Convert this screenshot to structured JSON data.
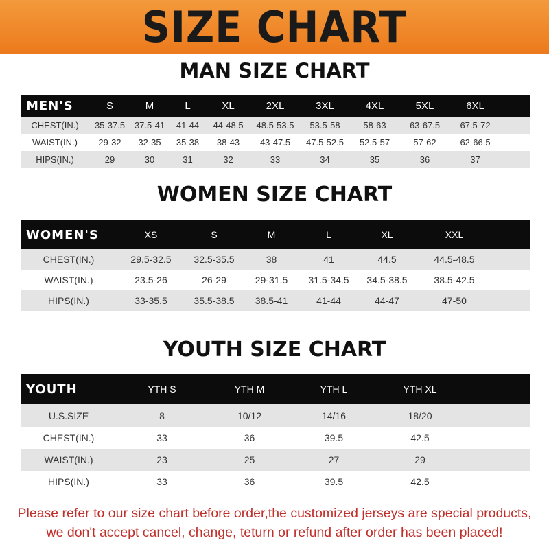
{
  "banner": "SIZE CHART",
  "men": {
    "title": "MAN SIZE CHART",
    "header": [
      "MEN'S",
      "S",
      "M",
      "L",
      "XL",
      "2XL",
      "3XL",
      "4XL",
      "5XL",
      "6XL"
    ],
    "rows": [
      [
        "CHEST(IN.)",
        "35-37.5",
        "37.5-41",
        "41-44",
        "44-48.5",
        "48.5-53.5",
        "53.5-58",
        "58-63",
        "63-67.5",
        "67.5-72"
      ],
      [
        "WAIST(IN.)",
        "29-32",
        "32-35",
        "35-38",
        "38-43",
        "43-47.5",
        "47.5-52.5",
        "52.5-57",
        "57-62",
        "62-66.5"
      ],
      [
        "HIPS(IN.)",
        "29",
        "30",
        "31",
        "32",
        "33",
        "34",
        "35",
        "36",
        "37"
      ]
    ]
  },
  "women": {
    "title": "WOMEN SIZE CHART",
    "header": [
      "WOMEN'S",
      "XS",
      "S",
      "M",
      "L",
      "XL",
      "XXL"
    ],
    "rows": [
      [
        "CHEST(IN.)",
        "29.5-32.5",
        "32.5-35.5",
        "38",
        "41",
        "44.5",
        "44.5-48.5"
      ],
      [
        "WAIST(IN.)",
        "23.5-26",
        "26-29",
        "29-31.5",
        "31.5-34.5",
        "34.5-38.5",
        "38.5-42.5"
      ],
      [
        "HIPS(IN.)",
        "33-35.5",
        "35.5-38.5",
        "38.5-41",
        "41-44",
        "44-47",
        "47-50"
      ]
    ]
  },
  "youth": {
    "title": "YOUTH SIZE CHART",
    "header": [
      "YOUTH",
      "YTH S",
      "YTH M",
      "YTH L",
      "YTH XL"
    ],
    "rows": [
      [
        "U.S.SIZE",
        "8",
        "10/12",
        "14/16",
        "18/20"
      ],
      [
        "CHEST(IN.)",
        "33",
        "36",
        "39.5",
        "42.5"
      ],
      [
        "WAIST(IN.)",
        "23",
        "25",
        "27",
        "29"
      ],
      [
        "HIPS(IN.)",
        "33",
        "36",
        "39.5",
        "42.5"
      ]
    ]
  },
  "note": {
    "line1": "Please refer to our size chart before order,the customized jerseys are special products,",
    "line2": "we don't accept cancel, change, teturn or refund after order has been placed!"
  },
  "colors": {
    "banner": "#ec7a1c",
    "header_bg": "#0c0c0c",
    "stripe": "#e4e4e4",
    "note": "#c0302b"
  }
}
